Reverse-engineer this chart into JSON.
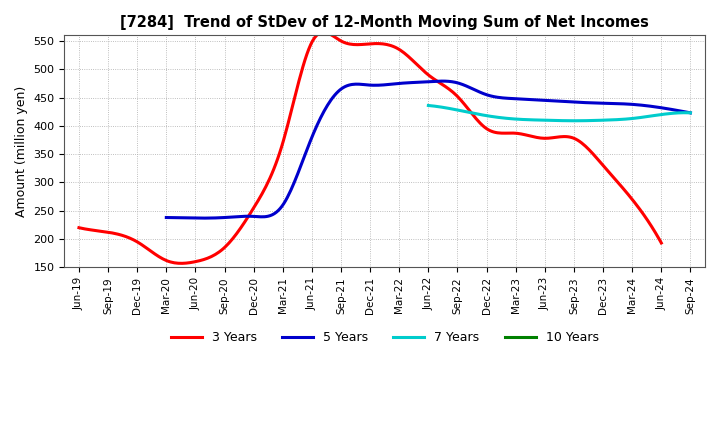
{
  "title": "[7284]  Trend of StDev of 12-Month Moving Sum of Net Incomes",
  "ylabel": "Amount (million yen)",
  "ylim": [
    150,
    560
  ],
  "yticks": [
    150,
    200,
    250,
    300,
    350,
    400,
    450,
    500,
    550
  ],
  "background_color": "#ffffff",
  "series": {
    "3 Years": {
      "color": "#ff0000",
      "points_x": [
        0,
        1,
        2,
        3,
        4,
        5,
        6,
        7,
        8,
        9,
        10,
        11,
        12,
        13,
        14,
        15,
        16,
        17,
        18,
        19,
        20
      ],
      "points_y": [
        220,
        212,
        195,
        162,
        160,
        185,
        255,
        370,
        548,
        550,
        545,
        535,
        490,
        452,
        395,
        387,
        378,
        378,
        330,
        270,
        193
      ]
    },
    "5 Years": {
      "color": "#0000cc",
      "points_x": [
        3,
        4,
        5,
        6,
        7,
        8,
        9,
        10,
        11,
        12,
        13,
        14,
        15,
        16,
        17,
        18,
        19,
        20,
        21
      ],
      "points_y": [
        238,
        237,
        238,
        240,
        260,
        380,
        465,
        472,
        475,
        478,
        476,
        455,
        448,
        445,
        442,
        440,
        438,
        432,
        423
      ]
    },
    "7 Years": {
      "color": "#00cccc",
      "points_x": [
        12,
        13,
        14,
        15,
        16,
        17,
        18,
        19,
        20,
        21
      ],
      "points_y": [
        436,
        428,
        418,
        412,
        410,
        409,
        410,
        413,
        420,
        423
      ]
    },
    "10 Years": {
      "color": "#008000",
      "points_x": [],
      "points_y": []
    }
  },
  "xtick_labels": [
    "Jun-19",
    "Sep-19",
    "Dec-19",
    "Mar-20",
    "Jun-20",
    "Sep-20",
    "Dec-20",
    "Mar-21",
    "Jun-21",
    "Sep-21",
    "Dec-21",
    "Mar-22",
    "Jun-22",
    "Sep-22",
    "Dec-22",
    "Mar-23",
    "Jun-23",
    "Sep-23",
    "Dec-23",
    "Mar-24",
    "Jun-24",
    "Sep-24"
  ],
  "legend_entries": [
    "3 Years",
    "5 Years",
    "7 Years",
    "10 Years"
  ],
  "legend_colors": [
    "#ff0000",
    "#0000cc",
    "#00cccc",
    "#008000"
  ]
}
